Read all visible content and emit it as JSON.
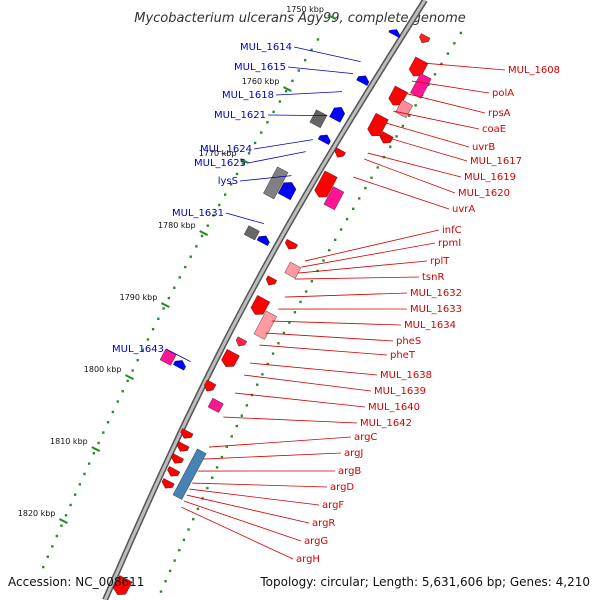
{
  "title": "Mycobacterium ulcerans Agy99, complete genome",
  "accession": "Accession: NC_008611",
  "topology": "Topology: circular; Length: 5,631,606 bp; Genes: 4,210",
  "colors": {
    "forward_strand": "#0000ff",
    "reverse_strand": "#ff0000",
    "backbone": "#8c8c8c",
    "tick_ring": "#2a8a2a",
    "label_reverse": "#d40000",
    "label_forward": "#0000c8"
  },
  "kbp_ticks": [
    "1750 kbp",
    "1760 kbp",
    "1770 kbp",
    "1780 kbp",
    "1790 kbp",
    "1800 kbp",
    "1810 kbp",
    "1820 kbp"
  ],
  "labels_forward": [
    "MUL_1614",
    "MUL_1615",
    "MUL_1618",
    "MUL_1621",
    "MUL_1624",
    "MUL_1625",
    "lysS",
    "MUL_1631",
    "MUL_1643"
  ],
  "labels_reverse": [
    "MUL_1608",
    "polA",
    "rpsA",
    "coaE",
    "uvrB",
    "MUL_1617",
    "MUL_1619",
    "MUL_1620",
    "uvrA",
    "infC",
    "rpmI",
    "rplT",
    "tsnR",
    "MUL_1632",
    "MUL_1633",
    "MUL_1634",
    "pheS",
    "pheT",
    "MUL_1638",
    "MUL_1639",
    "MUL_1640",
    "MUL_1642",
    "argC",
    "argJ",
    "argB",
    "argD",
    "argF",
    "argR",
    "argG",
    "argH"
  ]
}
